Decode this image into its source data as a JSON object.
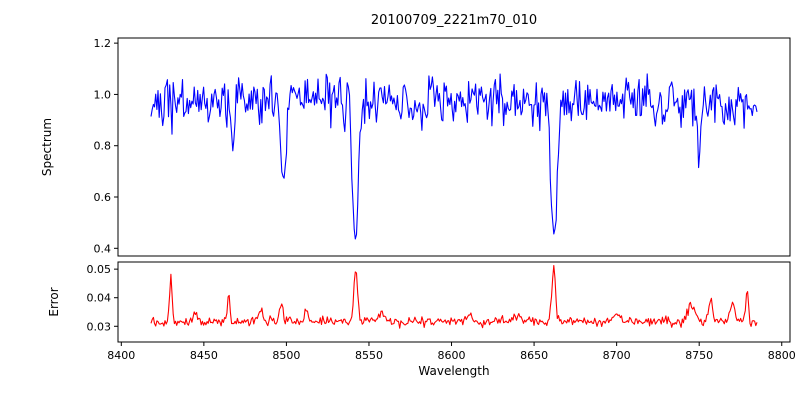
{
  "chart_data": {
    "type": "line",
    "title": "20100709_2221m70_010",
    "xlabel": "Wavelength",
    "background": "#ffffff",
    "axis_color": "#000000",
    "xlim": [
      8398,
      8805
    ],
    "xticks": [
      8400,
      8450,
      8500,
      8550,
      8600,
      8650,
      8700,
      8750,
      8800
    ],
    "xtick_labels": [
      "8400",
      "8450",
      "8500",
      "8550",
      "8600",
      "8650",
      "8700",
      "8750",
      "8800"
    ],
    "x_range": [
      8418,
      8785
    ],
    "n_points": 520,
    "legend": "none",
    "grid": false,
    "panels": [
      {
        "name": "spectrum",
        "ylabel": "Spectrum",
        "line_color": "#0000ff",
        "ylim": [
          0.37,
          1.22
        ],
        "yticks": [
          0.4,
          0.6,
          0.8,
          1.0,
          1.2
        ],
        "ytick_labels": [
          "0.4",
          "0.6",
          "0.8",
          "1.0",
          "1.2"
        ],
        "continuum_level": 0.97,
        "noise_sigma": 0.048,
        "seed": 20100709,
        "absorption_lines": [
          {
            "center": 8468,
            "depth": 0.14,
            "width": 0.9
          },
          {
            "center": 8498,
            "depth": 0.34,
            "width": 1.4
          },
          {
            "center": 8542,
            "depth": 0.55,
            "width": 1.9
          },
          {
            "center": 8662,
            "depth": 0.53,
            "width": 1.9
          },
          {
            "center": 8750,
            "depth": 0.25,
            "width": 1.0
          }
        ]
      },
      {
        "name": "error",
        "ylabel": "Error",
        "line_color": "#ff0000",
        "ylim": [
          0.0245,
          0.0525
        ],
        "yticks": [
          0.03,
          0.04,
          0.05
        ],
        "ytick_labels": [
          "0.03",
          "0.04",
          "0.05"
        ],
        "baseline_level": 0.0313,
        "noise_sigma": 0.0008,
        "noise_skew": 0.6,
        "seed": 2221,
        "spikes": [
          {
            "center": 8430,
            "height": 0.0165,
            "width": 0.7
          },
          {
            "center": 8445,
            "height": 0.003,
            "width": 1.5
          },
          {
            "center": 8465,
            "height": 0.0105,
            "width": 0.7
          },
          {
            "center": 8484,
            "height": 0.004,
            "width": 1.2
          },
          {
            "center": 8497,
            "height": 0.0065,
            "width": 1.0
          },
          {
            "center": 8512,
            "height": 0.0045,
            "width": 1.0
          },
          {
            "center": 8542,
            "height": 0.0185,
            "width": 1.1
          },
          {
            "center": 8558,
            "height": 0.004,
            "width": 1.5
          },
          {
            "center": 8610,
            "height": 0.002,
            "width": 2.0
          },
          {
            "center": 8640,
            "height": 0.002,
            "width": 2.0
          },
          {
            "center": 8662,
            "height": 0.0185,
            "width": 1.1
          },
          {
            "center": 8700,
            "height": 0.0025,
            "width": 2.0
          },
          {
            "center": 8745,
            "height": 0.005,
            "width": 2.5
          },
          {
            "center": 8757,
            "height": 0.0085,
            "width": 1.0
          },
          {
            "center": 8770,
            "height": 0.006,
            "width": 1.5
          },
          {
            "center": 8779,
            "height": 0.0115,
            "width": 0.7
          }
        ]
      }
    ]
  }
}
